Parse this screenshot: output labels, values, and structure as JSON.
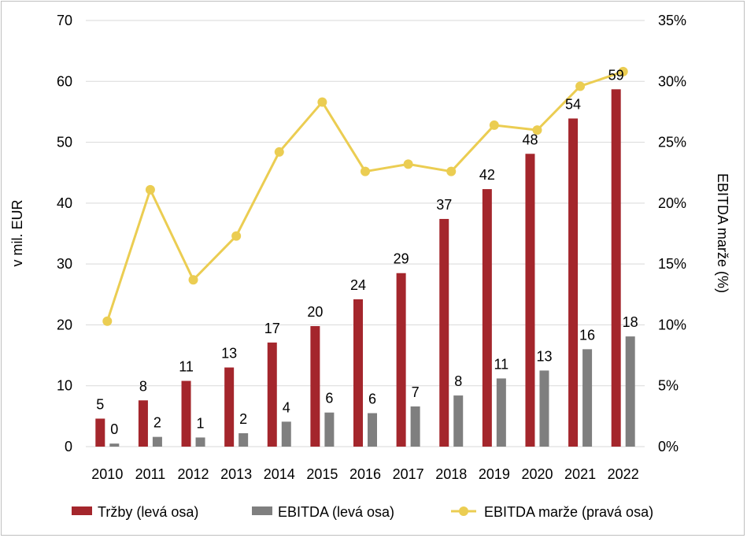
{
  "chart_data": {
    "type": "bar",
    "categories": [
      "2010",
      "2011",
      "2012",
      "2013",
      "2014",
      "2015",
      "2016",
      "2017",
      "2018",
      "2019",
      "2020",
      "2021",
      "2022"
    ],
    "series": [
      {
        "name": "Tržby (levá osa)",
        "type": "bar",
        "axis": "left",
        "color": "#A4262C",
        "values": [
          4.6,
          7.6,
          10.8,
          13.0,
          17.1,
          19.8,
          24.2,
          28.5,
          37.4,
          42.3,
          48.1,
          53.9,
          58.7
        ],
        "labels": [
          "5",
          "8",
          "11",
          "13",
          "17",
          "20",
          "24",
          "29",
          "37",
          "42",
          "48",
          "54",
          "59"
        ]
      },
      {
        "name": "EBITDA (levá osa)",
        "type": "bar",
        "axis": "left",
        "color": "#7F7F7F",
        "values": [
          0.5,
          1.6,
          1.5,
          2.2,
          4.1,
          5.6,
          5.5,
          6.6,
          8.4,
          11.2,
          12.5,
          16.0,
          18.1
        ],
        "labels": [
          "0",
          "2",
          "1",
          "2",
          "4",
          "6",
          "6",
          "7",
          "8",
          "11",
          "13",
          "16",
          "18"
        ]
      },
      {
        "name": "EBITDA marže (pravá osa)",
        "type": "line",
        "axis": "right",
        "color": "#EBCD52",
        "values": [
          10.3,
          21.1,
          13.7,
          17.3,
          24.2,
          28.3,
          22.6,
          23.2,
          22.6,
          26.4,
          26.0,
          29.6,
          30.8
        ]
      }
    ],
    "yaxis_left": {
      "label": "v mil. EUR",
      "ylim": [
        0,
        70
      ],
      "ticks": [
        "0",
        "10",
        "20",
        "30",
        "40",
        "50",
        "60",
        "70"
      ]
    },
    "yaxis_right": {
      "label": "EBITDA marže (%)",
      "ylim": [
        0,
        35
      ],
      "ticks": [
        "0%",
        "5%",
        "10%",
        "15%",
        "20%",
        "25%",
        "30%",
        "35%"
      ]
    },
    "grid": true,
    "legend_position": "bottom"
  }
}
